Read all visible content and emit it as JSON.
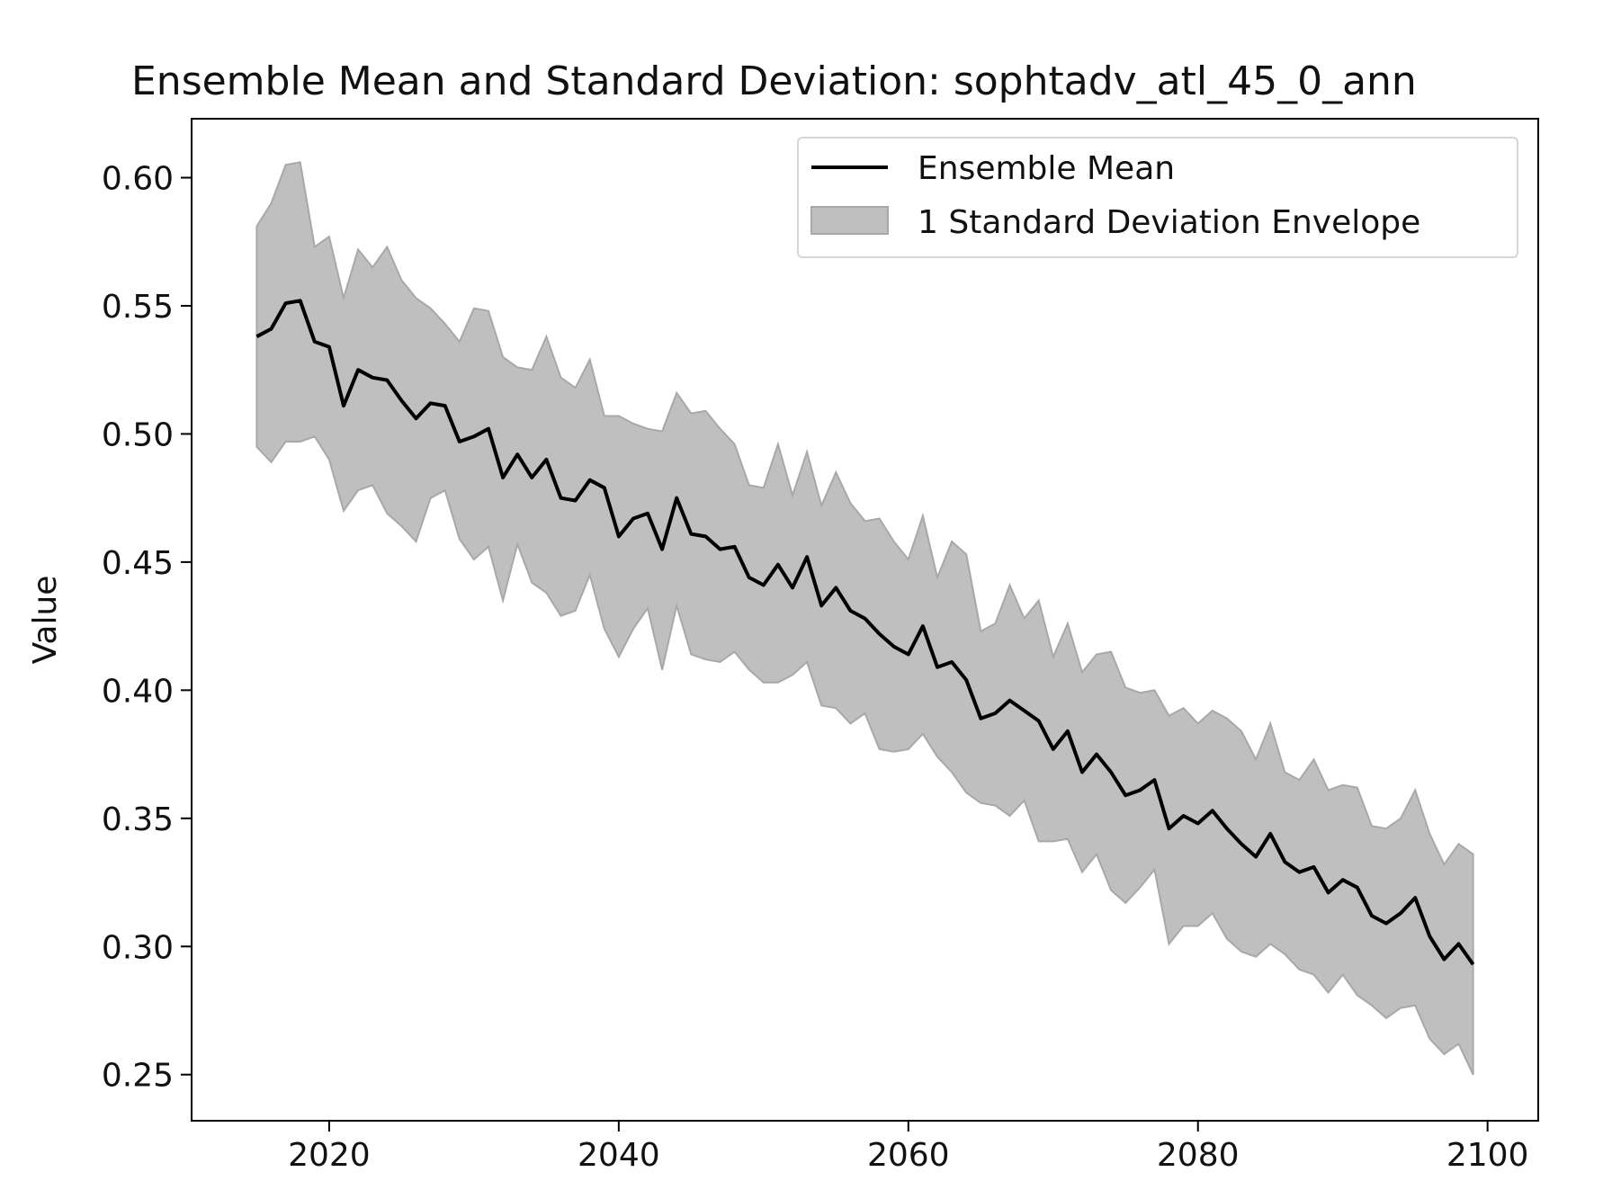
{
  "chart_data": {
    "type": "line",
    "title": "Ensemble Mean and Standard Deviation: sophtadv_atl_45_0_ann",
    "xlabel": "",
    "ylabel": "Value",
    "xlim": [
      2010.5,
      2103.5
    ],
    "ylim": [
      0.232,
      0.623
    ],
    "xticks": [
      2020,
      2040,
      2060,
      2080,
      2100
    ],
    "yticks": [
      0.25,
      0.3,
      0.35,
      0.4,
      0.45,
      0.5,
      0.55,
      0.6
    ],
    "ytick_labels": [
      "0.25",
      "0.30",
      "0.35",
      "0.40",
      "0.45",
      "0.50",
      "0.55",
      "0.60"
    ],
    "xtick_labels": [
      "2020",
      "2040",
      "2060",
      "2080",
      "2100"
    ],
    "legend_position": "top-right",
    "colors": {
      "mean_line": "#000000",
      "envelope_fill": "#bfbfbf",
      "envelope_edge": "#a8a8a8"
    },
    "series": [
      {
        "name": "Ensemble Mean",
        "x": [
          2015,
          2016,
          2017,
          2018,
          2019,
          2020,
          2021,
          2022,
          2023,
          2024,
          2025,
          2026,
          2027,
          2028,
          2029,
          2030,
          2031,
          2032,
          2033,
          2034,
          2035,
          2036,
          2037,
          2038,
          2039,
          2040,
          2041,
          2042,
          2043,
          2044,
          2045,
          2046,
          2047,
          2048,
          2049,
          2050,
          2051,
          2052,
          2053,
          2054,
          2055,
          2056,
          2057,
          2058,
          2059,
          2060,
          2061,
          2062,
          2063,
          2064,
          2065,
          2066,
          2067,
          2068,
          2069,
          2070,
          2071,
          2072,
          2073,
          2074,
          2075,
          2076,
          2077,
          2078,
          2079,
          2080,
          2081,
          2082,
          2083,
          2084,
          2085,
          2086,
          2087,
          2088,
          2089,
          2090,
          2091,
          2092,
          2093,
          2094,
          2095,
          2096,
          2097,
          2098,
          2099
        ],
        "values": [
          0.538,
          0.541,
          0.551,
          0.552,
          0.536,
          0.534,
          0.511,
          0.525,
          0.522,
          0.521,
          0.513,
          0.506,
          0.512,
          0.511,
          0.497,
          0.499,
          0.502,
          0.483,
          0.492,
          0.483,
          0.49,
          0.475,
          0.474,
          0.482,
          0.479,
          0.46,
          0.467,
          0.469,
          0.455,
          0.475,
          0.461,
          0.46,
          0.455,
          0.456,
          0.444,
          0.441,
          0.449,
          0.44,
          0.452,
          0.433,
          0.44,
          0.431,
          0.428,
          0.422,
          0.417,
          0.414,
          0.425,
          0.409,
          0.411,
          0.404,
          0.389,
          0.391,
          0.396,
          0.392,
          0.388,
          0.377,
          0.384,
          0.368,
          0.375,
          0.368,
          0.359,
          0.361,
          0.365,
          0.346,
          0.351,
          0.348,
          0.353,
          0.346,
          0.34,
          0.335,
          0.344,
          0.333,
          0.329,
          0.331,
          0.321,
          0.326,
          0.323,
          0.312,
          0.309,
          0.313,
          0.319,
          0.304,
          0.295,
          0.301,
          0.293
        ]
      },
      {
        "name": "1 Standard Deviation Envelope",
        "upper": [
          0.581,
          0.59,
          0.605,
          0.606,
          0.573,
          0.577,
          0.553,
          0.572,
          0.565,
          0.573,
          0.56,
          0.553,
          0.549,
          0.543,
          0.536,
          0.549,
          0.548,
          0.53,
          0.526,
          0.525,
          0.538,
          0.522,
          0.518,
          0.529,
          0.507,
          0.507,
          0.504,
          0.502,
          0.501,
          0.516,
          0.508,
          0.509,
          0.502,
          0.496,
          0.48,
          0.479,
          0.496,
          0.476,
          0.493,
          0.472,
          0.485,
          0.473,
          0.466,
          0.467,
          0.458,
          0.451,
          0.468,
          0.444,
          0.458,
          0.453,
          0.423,
          0.426,
          0.441,
          0.428,
          0.435,
          0.413,
          0.426,
          0.407,
          0.414,
          0.415,
          0.401,
          0.399,
          0.4,
          0.39,
          0.393,
          0.387,
          0.392,
          0.389,
          0.384,
          0.373,
          0.387,
          0.368,
          0.365,
          0.373,
          0.361,
          0.363,
          0.362,
          0.347,
          0.346,
          0.35,
          0.361,
          0.344,
          0.332,
          0.34,
          0.336
        ],
        "lower": [
          0.495,
          0.489,
          0.497,
          0.497,
          0.499,
          0.49,
          0.47,
          0.478,
          0.48,
          0.469,
          0.464,
          0.458,
          0.475,
          0.478,
          0.459,
          0.451,
          0.456,
          0.435,
          0.457,
          0.442,
          0.438,
          0.429,
          0.431,
          0.445,
          0.424,
          0.413,
          0.424,
          0.432,
          0.408,
          0.433,
          0.414,
          0.412,
          0.411,
          0.415,
          0.408,
          0.403,
          0.403,
          0.406,
          0.411,
          0.394,
          0.393,
          0.387,
          0.391,
          0.377,
          0.376,
          0.377,
          0.383,
          0.374,
          0.368,
          0.36,
          0.356,
          0.355,
          0.351,
          0.357,
          0.341,
          0.341,
          0.342,
          0.329,
          0.336,
          0.322,
          0.317,
          0.323,
          0.33,
          0.301,
          0.308,
          0.308,
          0.313,
          0.303,
          0.298,
          0.296,
          0.301,
          0.297,
          0.291,
          0.289,
          0.282,
          0.289,
          0.281,
          0.277,
          0.272,
          0.276,
          0.277,
          0.264,
          0.258,
          0.262,
          0.25
        ]
      }
    ]
  }
}
